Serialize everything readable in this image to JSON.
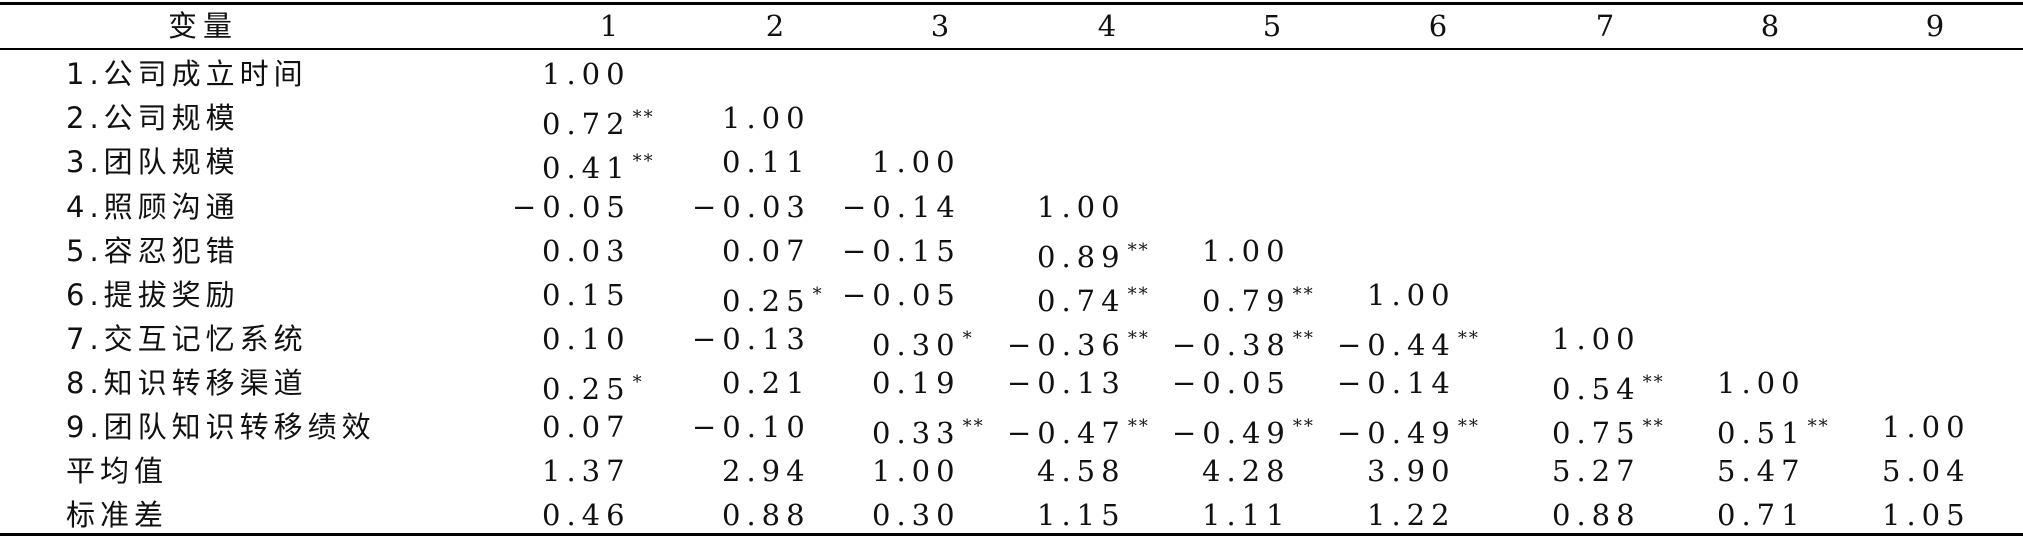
{
  "table": {
    "header": [
      "变量",
      "1",
      "2",
      "3",
      "4",
      "5",
      "6",
      "7",
      "8",
      "9"
    ],
    "rows": [
      {
        "label": "1.公司成立时间",
        "cells": [
          [
            "1.00",
            ""
          ]
        ]
      },
      {
        "label": "2.公司规模",
        "cells": [
          [
            "0.72",
            "**"
          ],
          [
            "1.00",
            ""
          ]
        ]
      },
      {
        "label": "3.团队规模",
        "cells": [
          [
            "0.41",
            "**"
          ],
          [
            "0.11",
            ""
          ],
          [
            "1.00",
            ""
          ]
        ]
      },
      {
        "label": "4.照顾沟通",
        "cells": [
          [
            "−0.05",
            ""
          ],
          [
            "−0.03",
            ""
          ],
          [
            "−0.14",
            ""
          ],
          [
            "1.00",
            ""
          ]
        ]
      },
      {
        "label": "5.容忍犯错",
        "cells": [
          [
            "0.03",
            ""
          ],
          [
            "0.07",
            ""
          ],
          [
            "−0.15",
            ""
          ],
          [
            "0.89",
            "**"
          ],
          [
            "1.00",
            ""
          ]
        ]
      },
      {
        "label": "6.提拔奖励",
        "cells": [
          [
            "0.15",
            ""
          ],
          [
            "0.25",
            "*"
          ],
          [
            "−0.05",
            ""
          ],
          [
            "0.74",
            "**"
          ],
          [
            "0.79",
            "**"
          ],
          [
            "1.00",
            ""
          ]
        ]
      },
      {
        "label": "7.交互记忆系统",
        "cells": [
          [
            "0.10",
            ""
          ],
          [
            "−0.13",
            ""
          ],
          [
            "0.30",
            "*"
          ],
          [
            "−0.36",
            "**"
          ],
          [
            "−0.38",
            "**"
          ],
          [
            "−0.44",
            "**"
          ],
          [
            "1.00",
            ""
          ]
        ]
      },
      {
        "label": "8.知识转移渠道",
        "cells": [
          [
            "0.25",
            "*"
          ],
          [
            "0.21",
            ""
          ],
          [
            "0.19",
            ""
          ],
          [
            "−0.13",
            ""
          ],
          [
            "−0.05",
            ""
          ],
          [
            "−0.14",
            ""
          ],
          [
            "0.54",
            "**"
          ],
          [
            "1.00",
            ""
          ]
        ]
      },
      {
        "label": "9.团队知识转移绩效",
        "cells": [
          [
            "0.07",
            ""
          ],
          [
            "−0.10",
            ""
          ],
          [
            "0.33",
            "**"
          ],
          [
            "−0.47",
            "**"
          ],
          [
            "−0.49",
            "**"
          ],
          [
            "−0.49",
            "**"
          ],
          [
            "0.75",
            "**"
          ],
          [
            "0.51",
            "**"
          ],
          [
            "1.00",
            ""
          ]
        ]
      },
      {
        "label": "平均值",
        "cells": [
          [
            "1.37",
            ""
          ],
          [
            "2.94",
            ""
          ],
          [
            "1.00",
            ""
          ],
          [
            "4.58",
            ""
          ],
          [
            "4.28",
            ""
          ],
          [
            "3.90",
            ""
          ],
          [
            "5.27",
            ""
          ],
          [
            "5.47",
            ""
          ],
          [
            "5.04",
            ""
          ]
        ]
      },
      {
        "label": "标准差",
        "cells": [
          [
            "0.46",
            ""
          ],
          [
            "0.88",
            ""
          ],
          [
            "0.30",
            ""
          ],
          [
            "1.15",
            ""
          ],
          [
            "1.11",
            ""
          ],
          [
            "1.22",
            ""
          ],
          [
            "0.88",
            ""
          ],
          [
            "0.71",
            ""
          ],
          [
            "1.05",
            ""
          ]
        ]
      }
    ]
  }
}
